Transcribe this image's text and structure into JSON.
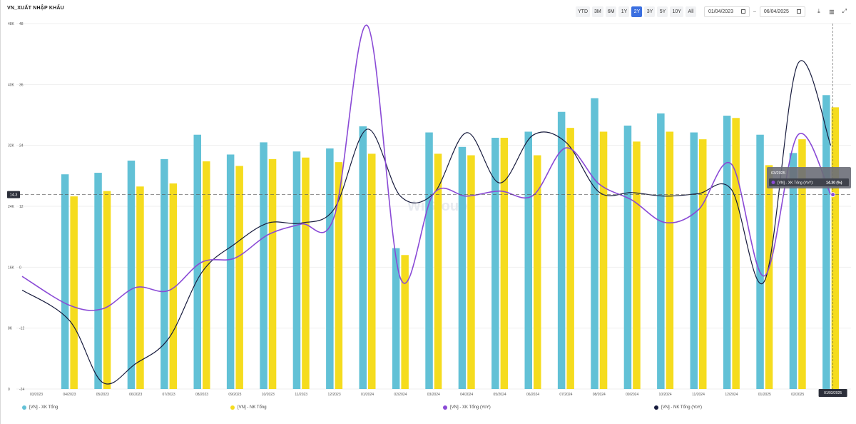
{
  "title": "VN_XUẤT NHẬP KHẨU",
  "toolbar": {
    "ranges": [
      "YTD",
      "3M",
      "6M",
      "1Y",
      "2Y",
      "3Y",
      "5Y",
      "10Y",
      "All"
    ],
    "active_range": "2Y",
    "start_date": "01/04/2023",
    "end_date": "06/04/2025"
  },
  "colors": {
    "xk": "#62c1d6",
    "nk": "#f5dc1e",
    "xk_yoy": "#8a4ad6",
    "nk_yoy": "#171b3d"
  },
  "tooltip": {
    "date": "03/2025",
    "series": "[VN] - XK Tổng (YoY)",
    "value": "14.30 (%)",
    "axis_label": "14.3",
    "x_label": "01/03/2025"
  },
  "watermark": "WiGroup",
  "chart_data": {
    "type": "bar",
    "categories": [
      "03/2023",
      "04/2023",
      "05/2023",
      "06/2023",
      "07/2023",
      "08/2023",
      "09/2023",
      "10/2023",
      "11/2023",
      "12/2023",
      "01/2024",
      "02/2024",
      "03/2024",
      "04/2024",
      "05/2024",
      "06/2024",
      "07/2024",
      "08/2024",
      "09/2024",
      "10/2024",
      "11/2024",
      "12/2024",
      "01/2025",
      "02/2025",
      "03/2025"
    ],
    "left_axis": {
      "ticks": [
        "0",
        "8K",
        "16K",
        "24K",
        "32K",
        "40K",
        "48K"
      ],
      "ylim": [
        0,
        48000
      ]
    },
    "right_axis": {
      "ticks": [
        "-24",
        "-12",
        "0",
        "12",
        "24",
        "36",
        "48"
      ],
      "ylim": [
        -24,
        48
      ]
    },
    "series": [
      {
        "name": "[VN] - XK Tổng",
        "type": "bar",
        "axis": "left",
        "values": [
          null,
          28200,
          28400,
          30000,
          30200,
          33400,
          30800,
          32400,
          31200,
          31600,
          34500,
          18500,
          33700,
          31800,
          33000,
          33800,
          36400,
          38200,
          34600,
          36200,
          33700,
          35900,
          33400,
          31000,
          38600
        ]
      },
      {
        "name": "[VN] - NK Tổng",
        "type": "bar",
        "axis": "left",
        "values": [
          null,
          25300,
          26000,
          26600,
          27000,
          29900,
          29300,
          30200,
          30400,
          29800,
          30900,
          17600,
          30900,
          30700,
          33000,
          30700,
          34300,
          33800,
          32500,
          33800,
          32800,
          35600,
          29400,
          32800,
          37000
        ]
      },
      {
        "name": "[VN] - XK Tổng (YoY)",
        "type": "line",
        "axis": "right",
        "values": [
          -1.8,
          -7.5,
          -8.2,
          -4.0,
          -4.6,
          1.0,
          1.8,
          6.4,
          8.5,
          10.0,
          47.6,
          -2.2,
          14.5,
          14.0,
          15.0,
          14.1,
          23.5,
          16.4,
          13.2,
          8.8,
          11.3,
          20.3,
          -1.7,
          26.0,
          14.3
        ]
      },
      {
        "name": "[VN] - NK Tổng (YoY)",
        "type": "line",
        "axis": "right",
        "values": [
          -4.5,
          -10.5,
          -22.7,
          -19.0,
          -14.0,
          -1.0,
          4.6,
          8.7,
          8.7,
          11.5,
          27.2,
          14.0,
          14.5,
          26.5,
          16.6,
          26.0,
          24.6,
          14.8,
          14.7,
          14.0,
          14.5,
          15.3,
          -2.7,
          40.0,
          24.0
        ]
      }
    ],
    "grid": true,
    "legend": "bottom"
  }
}
